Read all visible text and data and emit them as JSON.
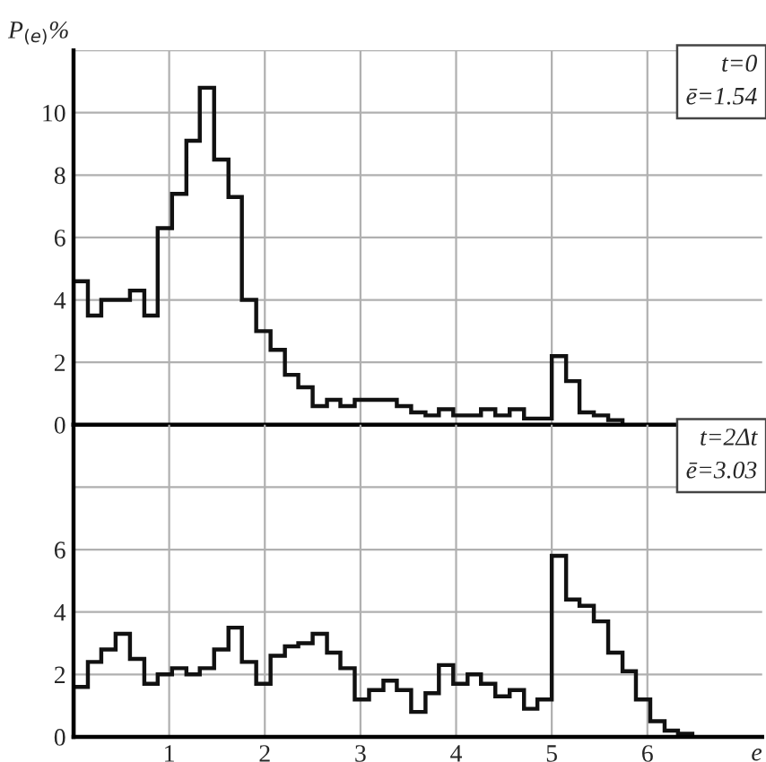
{
  "chart_data": [
    {
      "type": "histogram",
      "ylabel": "P$_{(e)}$%",
      "annotations": [
        "t=0",
        "ē=1.54"
      ],
      "bins": [
        0,
        0.15,
        0.29,
        0.44,
        0.59,
        0.74,
        0.88,
        1.03,
        1.18,
        1.32,
        1.47,
        1.62,
        1.76,
        1.91,
        2.06,
        2.21,
        2.35,
        2.5,
        2.65,
        2.79,
        2.94,
        3.09,
        3.24,
        3.38,
        3.53,
        3.68,
        3.82,
        3.97,
        4.12,
        4.26,
        4.41,
        4.56,
        4.71,
        4.85,
        5,
        5.15,
        5.29,
        5.44,
        5.59,
        5.74
      ],
      "values": [
        4.6,
        3.5,
        4.0,
        4.0,
        4.3,
        3.5,
        6.3,
        7.4,
        9.1,
        10.8,
        8.5,
        7.3,
        4.0,
        3.0,
        2.4,
        1.6,
        1.2,
        0.6,
        0.8,
        0.6,
        0.8,
        0.8,
        0.8,
        0.6,
        0.4,
        0.3,
        0.5,
        0.3,
        0.3,
        0.5,
        0.3,
        0.5,
        0.2,
        0.2,
        2.2,
        1.4,
        0.4,
        0.3,
        0.15
      ],
      "color": "#111111",
      "xlim": [
        0,
        7.2
      ],
      "ylim": [
        0,
        12
      ],
      "xticks": [
        1,
        2,
        3,
        4,
        5,
        6
      ],
      "yticks": [
        0,
        2,
        4,
        6,
        8,
        10,
        {
          "value": 12,
          "label": null
        }
      ],
      "grid": true,
      "tick_labels": "y"
    },
    {
      "type": "histogram",
      "xlabel": "e",
      "annotations": [
        "t=2Δt",
        "ē=3.03"
      ],
      "bins": [
        0,
        0.15,
        0.29,
        0.44,
        0.59,
        0.74,
        0.88,
        1.03,
        1.18,
        1.32,
        1.47,
        1.62,
        1.76,
        1.91,
        2.06,
        2.21,
        2.35,
        2.5,
        2.65,
        2.79,
        2.94,
        3.09,
        3.24,
        3.38,
        3.53,
        3.68,
        3.82,
        3.97,
        4.12,
        4.26,
        4.41,
        4.56,
        4.71,
        4.85,
        5,
        5.15,
        5.29,
        5.44,
        5.59,
        5.74,
        5.88,
        6.03,
        6.18,
        6.32,
        6.47
      ],
      "values": [
        1.6,
        2.4,
        2.8,
        3.3,
        2.5,
        1.7,
        2.0,
        2.2,
        2.0,
        2.2,
        2.8,
        3.5,
        2.4,
        1.7,
        2.6,
        2.9,
        3.0,
        3.3,
        2.7,
        2.2,
        1.2,
        1.5,
        1.8,
        1.5,
        0.8,
        1.4,
        2.3,
        1.7,
        2.0,
        1.7,
        1.3,
        1.5,
        0.9,
        1.2,
        5.8,
        4.4,
        4.2,
        3.7,
        2.7,
        2.1,
        1.2,
        0.5,
        0.2,
        0.1
      ],
      "color": "#111111",
      "xlim": [
        0,
        7.2
      ],
      "ylim": [
        0,
        10
      ],
      "xticks": [
        1,
        2,
        3,
        4,
        5,
        6
      ],
      "yticks": [
        0,
        2,
        4,
        6,
        {
          "value": 8,
          "label": null
        }
      ],
      "grid": true
    }
  ]
}
